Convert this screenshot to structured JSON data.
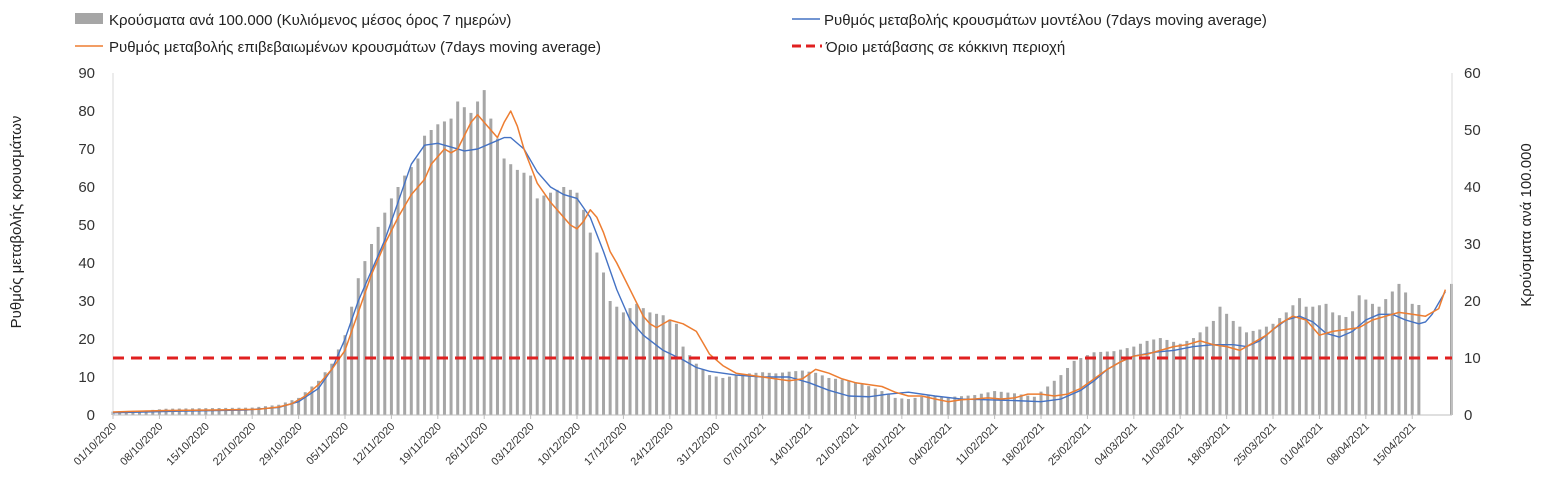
{
  "chart_data": {
    "type": "bar+line",
    "title": "",
    "legend": {
      "placement": "top",
      "items": [
        {
          "key": "bars",
          "label": "Κρούσματα ανά 100.000 (Κυλιόμενος μέσος όρος 7 ημερών)",
          "color": "#a6a6a6",
          "style": "bar"
        },
        {
          "key": "model",
          "label": "Ρυθμός μεταβολής κρουσμάτων μοντέλου (7days moving average)",
          "color": "#4472c4",
          "style": "line"
        },
        {
          "key": "confirmed",
          "label": "Ρυθμός μεταβολής επιβεβαιωμένων κρουσμάτων (7days moving average)",
          "color": "#ed7d31",
          "style": "line"
        },
        {
          "key": "threshold",
          "label": "Όριο μετάβασης σε κόκκινη περιοχή",
          "color": "#e02020",
          "style": "dashed"
        }
      ]
    },
    "y_left": {
      "label": "Ρυθμός μεταβολής κρουσμάτων",
      "min": 0,
      "max": 90,
      "ticks": [
        "0",
        "10",
        "20",
        "30",
        "40",
        "50",
        "60",
        "70",
        "80",
        "90"
      ]
    },
    "y_right": {
      "label": "Κρούσματα ανά 100.000",
      "min": 0,
      "max": 60,
      "ticks": [
        "0",
        "10",
        "20",
        "30",
        "40",
        "50",
        "60"
      ]
    },
    "x_tick_labels": [
      "01/10/2020",
      "08/10/2020",
      "15/10/2020",
      "22/10/2020",
      "29/10/2020",
      "05/11/2020",
      "12/11/2020",
      "19/11/2020",
      "26/11/2020",
      "03/12/2020",
      "10/12/2020",
      "17/12/2020",
      "24/12/2020",
      "31/12/2020",
      "07/01/2021",
      "14/01/2021",
      "21/01/2021",
      "28/01/2021",
      "04/02/2021",
      "11/02/2021",
      "18/02/2021",
      "25/02/2021",
      "04/03/2021",
      "11/03/2021",
      "18/03/2021",
      "25/03/2021",
      "01/04/2021",
      "08/04/2021",
      "15/04/2021"
    ],
    "threshold_value": 15,
    "grid": false,
    "bar_keypoints_right_axis": [
      [
        0,
        0.6
      ],
      [
        5,
        0.8
      ],
      [
        8,
        1.1
      ],
      [
        14,
        1.2
      ],
      [
        21,
        1.3
      ],
      [
        25,
        1.8
      ],
      [
        28,
        3
      ],
      [
        31,
        6
      ],
      [
        33,
        9
      ],
      [
        35,
        14
      ],
      [
        37,
        24
      ],
      [
        38,
        27
      ],
      [
        40,
        33
      ],
      [
        42,
        38
      ],
      [
        44,
        42
      ],
      [
        46,
        45
      ],
      [
        47,
        49
      ],
      [
        49,
        51
      ],
      [
        51,
        52
      ],
      [
        52,
        55
      ],
      [
        53,
        54
      ],
      [
        54,
        53
      ],
      [
        55,
        55
      ],
      [
        56,
        57
      ],
      [
        57,
        52
      ],
      [
        59,
        45
      ],
      [
        61,
        43
      ],
      [
        63,
        42
      ],
      [
        64,
        38
      ],
      [
        66,
        39
      ],
      [
        68,
        40
      ],
      [
        70,
        39
      ],
      [
        71,
        36
      ],
      [
        72,
        32
      ],
      [
        74,
        25
      ],
      [
        75,
        20
      ],
      [
        77,
        18
      ],
      [
        79,
        19.5
      ],
      [
        81,
        18
      ],
      [
        83,
        17.5
      ],
      [
        85,
        16
      ],
      [
        86,
        12
      ],
      [
        88,
        9
      ],
      [
        90,
        7
      ],
      [
        92,
        6.5
      ],
      [
        95,
        7.2
      ],
      [
        98,
        7.5
      ],
      [
        100,
        7.3
      ],
      [
        102,
        7.6
      ],
      [
        104,
        7.8
      ],
      [
        106,
        7.4
      ],
      [
        108,
        6.5
      ],
      [
        110,
        6.2
      ],
      [
        113,
        5.5
      ],
      [
        116,
        4.2
      ],
      [
        118,
        3
      ],
      [
        120,
        2.8
      ],
      [
        123,
        3.4
      ],
      [
        125,
        3.1
      ],
      [
        128,
        3.3
      ],
      [
        130,
        3.5
      ],
      [
        133,
        4.2
      ],
      [
        136,
        3.8
      ],
      [
        139,
        3.2
      ],
      [
        141,
        5
      ],
      [
        143,
        7
      ],
      [
        145,
        9.5
      ],
      [
        148,
        11
      ],
      [
        151,
        11.2
      ],
      [
        154,
        12
      ],
      [
        156,
        13
      ],
      [
        158,
        13.5
      ],
      [
        161,
        12.5
      ],
      [
        163,
        13.5
      ],
      [
        165,
        15.5
      ],
      [
        166,
        16.5
      ],
      [
        167,
        19
      ],
      [
        169,
        16.5
      ],
      [
        171,
        14.5
      ],
      [
        173,
        15
      ],
      [
        175,
        16
      ],
      [
        177,
        18
      ],
      [
        179,
        20.5
      ],
      [
        180,
        19
      ],
      [
        181,
        19
      ],
      [
        183,
        19.5
      ],
      [
        184,
        18
      ],
      [
        185,
        17.5
      ],
      [
        186,
        17.2
      ],
      [
        187,
        18.2
      ],
      [
        188,
        21
      ],
      [
        190,
        19.5
      ],
      [
        191,
        19
      ],
      [
        194,
        23
      ],
      [
        195,
        21.5
      ],
      [
        196,
        19.5
      ],
      [
        197,
        19.3
      ]
    ],
    "model_keypoints_left_axis": [
      [
        0,
        0.6
      ],
      [
        10,
        1
      ],
      [
        20,
        1.3
      ],
      [
        25,
        2
      ],
      [
        28,
        3.5
      ],
      [
        31,
        7
      ],
      [
        33,
        12
      ],
      [
        35,
        20
      ],
      [
        37,
        30
      ],
      [
        39,
        38
      ],
      [
        41,
        46
      ],
      [
        43,
        56
      ],
      [
        45,
        66
      ],
      [
        47,
        71
      ],
      [
        49,
        71.5
      ],
      [
        51,
        70.5
      ],
      [
        53,
        69.5
      ],
      [
        55,
        70
      ],
      [
        57,
        71.5
      ],
      [
        59,
        73
      ],
      [
        60,
        73
      ],
      [
        62,
        70
      ],
      [
        64,
        64
      ],
      [
        66,
        60
      ],
      [
        68,
        58
      ],
      [
        70,
        57
      ],
      [
        72,
        52
      ],
      [
        74,
        43
      ],
      [
        76,
        33
      ],
      [
        78,
        25
      ],
      [
        80,
        21
      ],
      [
        83,
        17
      ],
      [
        86,
        14.5
      ],
      [
        88,
        12.5
      ],
      [
        90,
        11.5
      ],
      [
        94,
        10.5
      ],
      [
        98,
        10
      ],
      [
        102,
        10
      ],
      [
        105,
        8.5
      ],
      [
        108,
        6.5
      ],
      [
        111,
        5
      ],
      [
        114,
        4.8
      ],
      [
        117,
        5.5
      ],
      [
        120,
        6
      ],
      [
        124,
        5
      ],
      [
        128,
        4.2
      ],
      [
        132,
        4
      ],
      [
        136,
        3.8
      ],
      [
        140,
        3.5
      ],
      [
        143,
        4.2
      ],
      [
        146,
        6.5
      ],
      [
        148,
        9
      ],
      [
        150,
        12
      ],
      [
        152,
        14
      ],
      [
        154,
        15.5
      ],
      [
        157,
        16.5
      ],
      [
        160,
        17
      ],
      [
        163,
        18
      ],
      [
        166,
        18.5
      ],
      [
        169,
        18.5
      ],
      [
        171,
        18
      ],
      [
        173,
        19.5
      ],
      [
        175,
        22.5
      ],
      [
        177,
        25
      ],
      [
        179,
        26
      ],
      [
        181,
        24.5
      ],
      [
        183,
        21.5
      ],
      [
        185,
        20.5
      ],
      [
        187,
        22
      ],
      [
        189,
        25
      ],
      [
        191,
        26.5
      ],
      [
        193,
        26.5
      ],
      [
        195,
        25
      ],
      [
        197,
        24
      ],
      [
        198,
        24.5
      ],
      [
        199,
        26.5
      ],
      [
        200,
        29.5
      ],
      [
        201,
        32.5
      ]
    ],
    "confirmed_keypoints_left_axis": [
      [
        0,
        0.8
      ],
      [
        8,
        1.2
      ],
      [
        15,
        1.3
      ],
      [
        22,
        1.5
      ],
      [
        25,
        2.1
      ],
      [
        27,
        3
      ],
      [
        29,
        5
      ],
      [
        31,
        8
      ],
      [
        33,
        12
      ],
      [
        35,
        17
      ],
      [
        37,
        27
      ],
      [
        39,
        37
      ],
      [
        41,
        45
      ],
      [
        43,
        52
      ],
      [
        45,
        58
      ],
      [
        47,
        62
      ],
      [
        48,
        66
      ],
      [
        50,
        70
      ],
      [
        51,
        69
      ],
      [
        52,
        70
      ],
      [
        54,
        77
      ],
      [
        55,
        79
      ],
      [
        57,
        75
      ],
      [
        58,
        73
      ],
      [
        59,
        77
      ],
      [
        60,
        80
      ],
      [
        61,
        76
      ],
      [
        62,
        70
      ],
      [
        64,
        61
      ],
      [
        66,
        56
      ],
      [
        67,
        54
      ],
      [
        69,
        50
      ],
      [
        70,
        49
      ],
      [
        71,
        51
      ],
      [
        72,
        54
      ],
      [
        73,
        52
      ],
      [
        74,
        48
      ],
      [
        75,
        43
      ],
      [
        76,
        40
      ],
      [
        78,
        33
      ],
      [
        80,
        26
      ],
      [
        81,
        24
      ],
      [
        82,
        23
      ],
      [
        84,
        25
      ],
      [
        86,
        24
      ],
      [
        88,
        22
      ],
      [
        89,
        19
      ],
      [
        90,
        16
      ],
      [
        92,
        13
      ],
      [
        94,
        11
      ],
      [
        96,
        10.5
      ],
      [
        98,
        10
      ],
      [
        100,
        9.5
      ],
      [
        102,
        9
      ],
      [
        104,
        9.5
      ],
      [
        106,
        12
      ],
      [
        108,
        11
      ],
      [
        110,
        9.5
      ],
      [
        112,
        8.5
      ],
      [
        114,
        8
      ],
      [
        116,
        7.5
      ],
      [
        118,
        6
      ],
      [
        120,
        5
      ],
      [
        122,
        5
      ],
      [
        124,
        4.2
      ],
      [
        126,
        3.5
      ],
      [
        128,
        4
      ],
      [
        130,
        4.2
      ],
      [
        132,
        4.5
      ],
      [
        134,
        4.2
      ],
      [
        136,
        4.5
      ],
      [
        138,
        5.5
      ],
      [
        140,
        5.5
      ],
      [
        142,
        5
      ],
      [
        144,
        5.5
      ],
      [
        146,
        7
      ],
      [
        148,
        9.5
      ],
      [
        150,
        12
      ],
      [
        152,
        14
      ],
      [
        154,
        15.5
      ],
      [
        156,
        16
      ],
      [
        158,
        17
      ],
      [
        160,
        18
      ],
      [
        162,
        18.5
      ],
      [
        164,
        19.5
      ],
      [
        166,
        18.5
      ],
      [
        168,
        18
      ],
      [
        170,
        17
      ],
      [
        172,
        19
      ],
      [
        174,
        21
      ],
      [
        176,
        24
      ],
      [
        178,
        26
      ],
      [
        180,
        25
      ],
      [
        182,
        21
      ],
      [
        184,
        22
      ],
      [
        186,
        22.5
      ],
      [
        188,
        23
      ],
      [
        190,
        25
      ],
      [
        192,
        26
      ],
      [
        194,
        27
      ],
      [
        196,
        26.5
      ],
      [
        198,
        26
      ],
      [
        200,
        28
      ],
      [
        201,
        33
      ]
    ]
  }
}
